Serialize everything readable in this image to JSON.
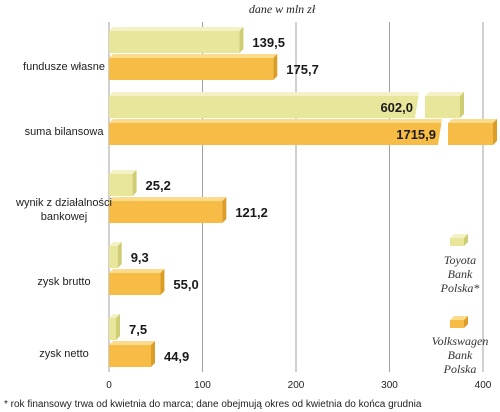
{
  "colors": {
    "series_a_front": "#e7e69a",
    "series_a_top": "#f3f2c6",
    "series_a_side": "#cfcd73",
    "series_b_front": "#f7bc45",
    "series_b_top": "#fbdb8c",
    "series_b_side": "#dc9d26",
    "grid": "#a0a0a0"
  },
  "chart_data": {
    "type": "bar",
    "orientation": "horizontal",
    "unit_label": "dane w mln zł",
    "categories": [
      "fundusze własne",
      "suma bilansowa",
      "wynik z działalności bankowej",
      "zysk brutto",
      "zysk netto"
    ],
    "category_lines": [
      [
        "fundusze własne"
      ],
      [
        "suma bilansowa"
      ],
      [
        "wynik z działalności",
        "bankowej"
      ],
      [
        "zysk brutto"
      ],
      [
        "zysk netto"
      ]
    ],
    "series": [
      {
        "name": "Toyota Bank Polska*",
        "values": [
          139.5,
          602.0,
          25.2,
          9.3,
          7.5
        ],
        "labels": [
          "139,5",
          "602,0",
          "25,2",
          "9,3",
          "7,5"
        ]
      },
      {
        "name": "Volkswagen Bank Polska",
        "values": [
          175.7,
          1715.9,
          121.2,
          55.0,
          44.9
        ],
        "labels": [
          "175,7",
          "1715,9",
          "121,2",
          "55,0",
          "44,9"
        ]
      }
    ],
    "xlim": [
      0,
      400
    ],
    "xticks": [
      0,
      100,
      200,
      300,
      400
    ],
    "axis_break": true,
    "grid": true,
    "legend_position": "bottom-right",
    "legend": [
      {
        "lines": [
          "Toyota",
          "Bank",
          "Polska*"
        ]
      },
      {
        "lines": [
          "Volkswagen",
          "Bank",
          "Polska"
        ]
      }
    ],
    "footnote": "* rok finansowy trwa od kwietnia do marca; dane obejmują okres od kwietnia do końca grudnia"
  }
}
